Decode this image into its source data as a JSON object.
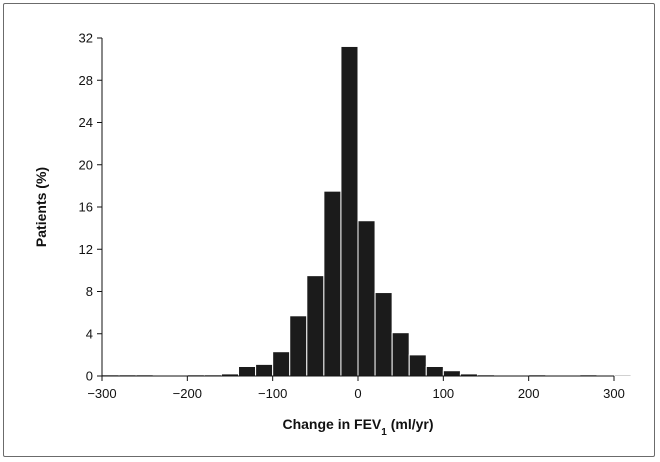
{
  "chart_data": {
    "type": "bar",
    "subtype": "histogram",
    "title": "",
    "xlabel_main": "Change in FEV",
    "xlabel_sub": "1",
    "xlabel_unit": " (ml/yr)",
    "ylabel": "Patients (%)",
    "xlim": [
      -300,
      300
    ],
    "ylim": [
      0,
      32
    ],
    "bin_width": 20,
    "x_ticks": [
      -300,
      -200,
      -100,
      0,
      100,
      200,
      300
    ],
    "x_tick_labels": [
      "−300",
      "−200",
      "−100",
      "0",
      "100",
      "200",
      "300"
    ],
    "y_ticks": [
      0,
      4,
      8,
      12,
      16,
      20,
      24,
      28,
      32
    ],
    "y_tick_labels": [
      "0",
      "4",
      "8",
      "12",
      "16",
      "20",
      "24",
      "28",
      "32"
    ],
    "bins": [
      {
        "start": -300,
        "value": 0.1
      },
      {
        "start": -280,
        "value": 0.1
      },
      {
        "start": -260,
        "value": 0.1
      },
      {
        "start": -200,
        "value": 0.1
      },
      {
        "start": -180,
        "value": 0.1
      },
      {
        "start": -160,
        "value": 0.2
      },
      {
        "start": -140,
        "value": 0.9
      },
      {
        "start": -120,
        "value": 1.1
      },
      {
        "start": -100,
        "value": 2.3
      },
      {
        "start": -80,
        "value": 5.7
      },
      {
        "start": -60,
        "value": 9.5
      },
      {
        "start": -40,
        "value": 17.5
      },
      {
        "start": -20,
        "value": 31.2
      },
      {
        "start": 0,
        "value": 14.7
      },
      {
        "start": 20,
        "value": 7.9
      },
      {
        "start": 40,
        "value": 4.1
      },
      {
        "start": 60,
        "value": 2.0
      },
      {
        "start": 80,
        "value": 0.9
      },
      {
        "start": 100,
        "value": 0.5
      },
      {
        "start": 120,
        "value": 0.2
      },
      {
        "start": 140,
        "value": 0.1
      },
      {
        "start": 200,
        "value": 0.1
      },
      {
        "start": 260,
        "value": 0.1
      },
      {
        "start": 300,
        "value": 0.1
      }
    ],
    "grid": false,
    "legend": "none"
  }
}
